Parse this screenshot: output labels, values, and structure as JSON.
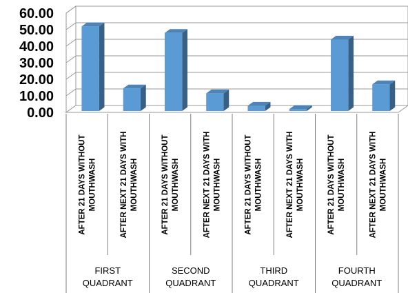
{
  "chart_data": {
    "type": "bar",
    "title": "",
    "xlabel": "",
    "ylabel": "",
    "ylim": [
      0,
      60
    ],
    "yticks": [
      "0.00",
      "10.00",
      "20.00",
      "30.00",
      "40.00",
      "50.00",
      "60.00"
    ],
    "grid": true,
    "legend": "none",
    "color": "#5b9bd5",
    "groups": [
      {
        "name": [
          "FIRST",
          "QUADRANT"
        ],
        "items": [
          {
            "label": [
              "AFTER 21 DAYS WITHOUT",
              "MOUTHWASH"
            ],
            "value": 52
          },
          {
            "label": [
              "AFTER NEXT 21 DAYS WITH",
              "MOUTHWASH"
            ],
            "value": 14.5
          }
        ]
      },
      {
        "name": [
          "SECOND",
          "QUADRANT"
        ],
        "items": [
          {
            "label": [
              "AFTER 21 DAYS WITHOUT",
              "MOUTHWASH"
            ],
            "value": 48
          },
          {
            "label": [
              "AFTER NEXT 21 DAYS WITH",
              "MOUTHWASH"
            ],
            "value": 11.5
          }
        ]
      },
      {
        "name": [
          "THIRD",
          "QUADRANT"
        ],
        "items": [
          {
            "label": [
              "AFTER 21 DAYS WITHOUT",
              "MOUTHWASH"
            ],
            "value": 4
          },
          {
            "label": [
              "AFTER NEXT 21 DAYS WITH",
              "MOUTHWASH"
            ],
            "value": 2
          }
        ]
      },
      {
        "name": [
          "FOURTH",
          "QUADRANT"
        ],
        "items": [
          {
            "label": [
              "AFTER 21 DAYS WITHOUT",
              "MOUTHWASH"
            ],
            "value": 44
          },
          {
            "label": [
              "AFTER NEXT 21 DAYS WITH",
              "MOUTHWASH"
            ],
            "value": 17
          }
        ]
      }
    ]
  }
}
